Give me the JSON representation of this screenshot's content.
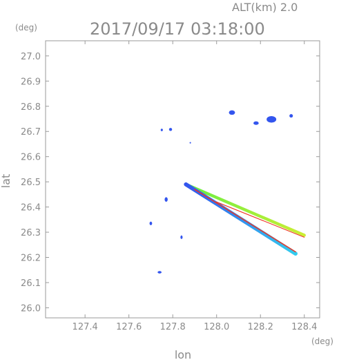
{
  "header": {
    "alt_label": "ALT(km)  2.0",
    "datetime": "2017/09/17 03:18:00"
  },
  "chart_data": {
    "type": "scatter",
    "xlabel": "lon",
    "ylabel": "lat",
    "x_unit": "(deg)",
    "y_unit": "(deg)",
    "xlim": [
      127.22,
      128.47
    ],
    "ylim": [
      25.96,
      27.06
    ],
    "x_ticks": [
      127.4,
      127.6,
      127.8,
      128.0,
      128.2,
      128.4
    ],
    "x_tick_labels": [
      "127.4",
      "127.6",
      "127.8",
      "128.0",
      "128.2",
      "128.4"
    ],
    "y_ticks": [
      26.0,
      26.1,
      26.2,
      26.3,
      26.4,
      26.5,
      26.6,
      26.7,
      26.8,
      26.9,
      27.0
    ],
    "y_tick_labels": [
      "26.0",
      "26.1",
      "26.2",
      "26.3",
      "26.4",
      "26.5",
      "26.6",
      "26.7",
      "26.8",
      "26.9",
      "27.0"
    ],
    "grid": false,
    "colors": {
      "echo_weak": "#3355ee",
      "echo_cyan": "#33ccee",
      "echo_green": "#66ee44",
      "echo_yellow": "#ccee33",
      "echo_red": "#ee3322",
      "axis": "#9a9a9a"
    },
    "echo_blobs": [
      {
        "lon": 128.07,
        "lat": 26.775,
        "rx": 0.014,
        "ry": 0.009,
        "color": "#3355ee"
      },
      {
        "lon": 128.18,
        "lat": 26.733,
        "rx": 0.012,
        "ry": 0.007,
        "color": "#3355ee"
      },
      {
        "lon": 128.25,
        "lat": 26.748,
        "rx": 0.022,
        "ry": 0.013,
        "color": "#3355ee"
      },
      {
        "lon": 128.34,
        "lat": 26.762,
        "rx": 0.008,
        "ry": 0.007,
        "color": "#3355ee"
      },
      {
        "lon": 127.75,
        "lat": 26.706,
        "rx": 0.005,
        "ry": 0.005,
        "color": "#3355ee"
      },
      {
        "lon": 127.79,
        "lat": 26.708,
        "rx": 0.007,
        "ry": 0.006,
        "color": "#3355ee"
      },
      {
        "lon": 127.77,
        "lat": 26.43,
        "rx": 0.007,
        "ry": 0.009,
        "color": "#3355ee"
      },
      {
        "lon": 127.84,
        "lat": 26.28,
        "rx": 0.005,
        "ry": 0.007,
        "color": "#3355ee"
      },
      {
        "lon": 127.7,
        "lat": 26.335,
        "rx": 0.006,
        "ry": 0.007,
        "color": "#3355ee"
      },
      {
        "lon": 127.74,
        "lat": 26.141,
        "rx": 0.009,
        "ry": 0.005,
        "color": "#3355ee"
      },
      {
        "lon": 127.88,
        "lat": 26.655,
        "rx": 0.003,
        "ry": 0.003,
        "color": "#3355ee"
      }
    ],
    "streaks": [
      {
        "from": [
          127.86,
          26.49
        ],
        "to": [
          128.4,
          26.288
        ],
        "width_deg": 0.012,
        "colors": [
          "#66ee44",
          "#ccee33"
        ]
      },
      {
        "from": [
          127.86,
          26.49
        ],
        "to": [
          128.36,
          26.215
        ],
        "width_deg": 0.016,
        "colors": [
          "#3355ee",
          "#33ccee"
        ]
      },
      {
        "from": [
          127.9,
          26.47
        ],
        "to": [
          128.36,
          26.222
        ],
        "width_deg": 0.004,
        "colors": [
          "#ee3322",
          "#ee3322"
        ]
      },
      {
        "from": [
          128.0,
          26.42
        ],
        "to": [
          128.4,
          26.28
        ],
        "width_deg": 0.003,
        "colors": [
          "#ee3322",
          "#ee3322"
        ]
      }
    ]
  }
}
